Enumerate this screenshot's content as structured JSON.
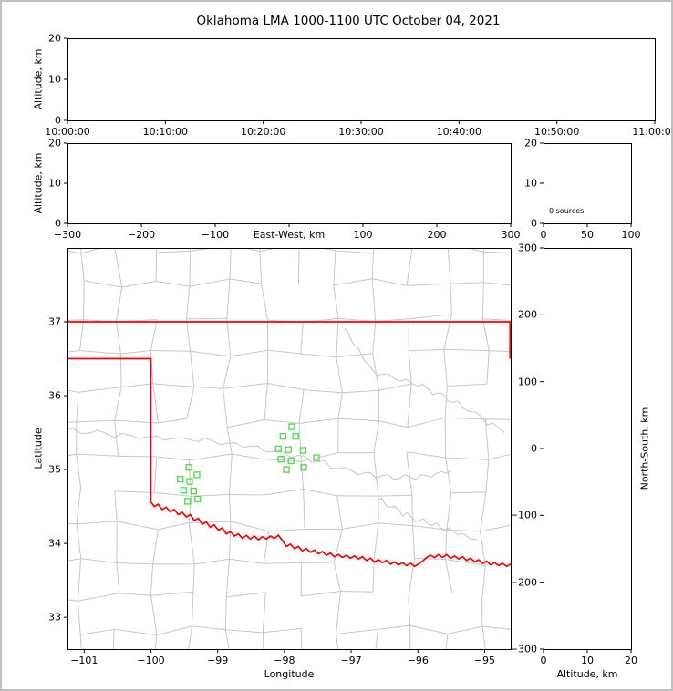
{
  "title": "Oklahoma LMA 1000-1100 UTC October 04, 2021",
  "colors": {
    "background": "#ffffff",
    "figure_border": "#c0c0c0",
    "axis": "#000000",
    "state_border": "#ff0000",
    "county_line": "#c6c6c6",
    "station_edge": "#55dd55"
  },
  "chart_data": {
    "type": "scatter",
    "title": "Oklahoma LMA 1000-1100 UTC October 04, 2021",
    "total_sources": 0,
    "panels": {
      "alt_vs_time": {
        "ylabel": "Altitude, km",
        "ylim": [
          0,
          20
        ],
        "yticks": [
          0,
          10,
          20
        ],
        "xticks": [
          "10:00:00",
          "10:10:00",
          "10:20:00",
          "10:30:00",
          "10:40:00",
          "10:50:00",
          "11:00:00"
        ],
        "points": []
      },
      "alt_vs_ew": {
        "ylabel": "Altitude, km",
        "xlabel": "East-West, km",
        "ylim": [
          0,
          20
        ],
        "yticks": [
          0,
          10,
          20
        ],
        "xlim": [
          -300,
          300
        ],
        "xticks": [
          -300,
          -200,
          -100,
          0,
          100,
          200,
          300
        ],
        "xlabel_replaces_zero_tick": true,
        "points": []
      },
      "alt_histogram": {
        "annotation": "0 sources",
        "ylim": [
          0,
          20
        ],
        "yticks": [
          0,
          10,
          20
        ],
        "xlim": [
          0,
          100
        ],
        "xticks": [
          0,
          50,
          100
        ],
        "bars": []
      },
      "plan_map": {
        "xlabel": "Longitude",
        "ylabel": "Latitude",
        "xlim": [
          -101.25,
          -94.61
        ],
        "ylim": [
          32.57,
          38.0
        ],
        "xticks": [
          -101,
          -100,
          -99,
          -98,
          -97,
          -96,
          -95
        ],
        "yticks": [
          33,
          34,
          35,
          36,
          37
        ],
        "points": [],
        "stations_lon_lat": [
          [
            -98.02,
            35.45
          ],
          [
            -97.83,
            35.45
          ],
          [
            -98.09,
            35.28
          ],
          [
            -97.94,
            35.27
          ],
          [
            -97.72,
            35.26
          ],
          [
            -98.05,
            35.14
          ],
          [
            -97.9,
            35.12
          ],
          [
            -97.97,
            35.0
          ],
          [
            -97.71,
            35.03
          ],
          [
            -97.52,
            35.16
          ],
          [
            -97.89,
            35.58
          ],
          [
            -99.43,
            35.03
          ],
          [
            -99.31,
            34.93
          ],
          [
            -99.56,
            34.87
          ],
          [
            -99.42,
            34.84
          ],
          [
            -99.51,
            34.72
          ],
          [
            -99.36,
            34.71
          ],
          [
            -99.45,
            34.57
          ],
          [
            -99.3,
            34.6
          ]
        ]
      },
      "ns_vs_alt": {
        "ylabel": "North-South, km",
        "xlabel": "Altitude, km",
        "ylim": [
          -300,
          300
        ],
        "yticks": [
          300,
          200,
          100,
          0,
          -100,
          -200,
          -300
        ],
        "xlim": [
          0,
          20
        ],
        "xticks": [
          0,
          10,
          20
        ],
        "points": []
      }
    },
    "map_overlay": {
      "oklahoma_north_border": [
        [
          -101.25,
          37.0
        ],
        [
          -94.61,
          37.0
        ]
      ],
      "oklahoma_east_border": [
        [
          -94.62,
          37.0
        ],
        [
          -94.62,
          36.5
        ]
      ],
      "oklahoma_west_border": [
        [
          -101.25,
          36.5
        ],
        [
          -100.0,
          36.5
        ],
        [
          -100.0,
          34.56
        ]
      ],
      "red_river_border": [
        [
          -100.0,
          34.56
        ],
        [
          -99.95,
          34.5
        ],
        [
          -99.89,
          34.53
        ],
        [
          -99.83,
          34.46
        ],
        [
          -99.77,
          34.49
        ],
        [
          -99.71,
          34.43
        ],
        [
          -99.65,
          34.46
        ],
        [
          -99.59,
          34.39
        ],
        [
          -99.53,
          34.42
        ],
        [
          -99.47,
          34.36
        ],
        [
          -99.41,
          34.39
        ],
        [
          -99.35,
          34.31
        ],
        [
          -99.29,
          34.34
        ],
        [
          -99.23,
          34.26
        ],
        [
          -99.17,
          34.29
        ],
        [
          -99.11,
          34.22
        ],
        [
          -99.05,
          34.25
        ],
        [
          -98.99,
          34.18
        ],
        [
          -98.93,
          34.21
        ],
        [
          -98.87,
          34.13
        ],
        [
          -98.81,
          34.16
        ],
        [
          -98.75,
          34.1
        ],
        [
          -98.69,
          34.13
        ],
        [
          -98.63,
          34.07
        ],
        [
          -98.57,
          34.11
        ],
        [
          -98.51,
          34.06
        ],
        [
          -98.45,
          34.1
        ],
        [
          -98.39,
          34.05
        ],
        [
          -98.33,
          34.09
        ],
        [
          -98.27,
          34.06
        ],
        [
          -98.21,
          34.1
        ],
        [
          -98.15,
          34.07
        ],
        [
          -98.09,
          34.11
        ],
        [
          -98.03,
          34.04
        ],
        [
          -97.97,
          33.96
        ],
        [
          -97.91,
          33.99
        ],
        [
          -97.85,
          33.93
        ],
        [
          -97.79,
          33.96
        ],
        [
          -97.73,
          33.9
        ],
        [
          -97.67,
          33.93
        ],
        [
          -97.61,
          33.88
        ],
        [
          -97.55,
          33.91
        ],
        [
          -97.49,
          33.86
        ],
        [
          -97.43,
          33.89
        ],
        [
          -97.37,
          33.84
        ],
        [
          -97.31,
          33.87
        ],
        [
          -97.25,
          33.82
        ],
        [
          -97.19,
          33.85
        ],
        [
          -97.13,
          33.81
        ],
        [
          -97.07,
          33.84
        ],
        [
          -97.01,
          33.8
        ],
        [
          -96.95,
          33.83
        ],
        [
          -96.89,
          33.79
        ],
        [
          -96.83,
          33.82
        ],
        [
          -96.77,
          33.77
        ],
        [
          -96.71,
          33.8
        ],
        [
          -96.65,
          33.75
        ],
        [
          -96.59,
          33.78
        ],
        [
          -96.53,
          33.74
        ],
        [
          -96.47,
          33.77
        ],
        [
          -96.41,
          33.72
        ],
        [
          -96.35,
          33.75
        ],
        [
          -96.29,
          33.71
        ],
        [
          -96.23,
          33.74
        ],
        [
          -96.17,
          33.7
        ],
        [
          -96.11,
          33.73
        ],
        [
          -96.05,
          33.69
        ],
        [
          -95.99,
          33.72
        ],
        [
          -95.93,
          33.76
        ],
        [
          -95.87,
          33.81
        ],
        [
          -95.81,
          33.84
        ],
        [
          -95.75,
          33.81
        ],
        [
          -95.69,
          33.85
        ],
        [
          -95.63,
          33.81
        ],
        [
          -95.57,
          33.85
        ],
        [
          -95.51,
          33.8
        ],
        [
          -95.45,
          33.83
        ],
        [
          -95.39,
          33.79
        ],
        [
          -95.33,
          33.82
        ],
        [
          -95.27,
          33.77
        ],
        [
          -95.21,
          33.8
        ],
        [
          -95.15,
          33.75
        ],
        [
          -95.09,
          33.78
        ],
        [
          -95.03,
          33.73
        ],
        [
          -94.97,
          33.76
        ],
        [
          -94.91,
          33.71
        ],
        [
          -94.85,
          33.74
        ],
        [
          -94.79,
          33.7
        ],
        [
          -94.73,
          33.73
        ],
        [
          -94.67,
          33.69
        ],
        [
          -94.61,
          33.72
        ]
      ],
      "county_grid": {
        "seed": 7,
        "lon_start": -101.6,
        "lon_step": 0.55,
        "cols": 13,
        "lat_start": 32.35,
        "lat_step": 0.47,
        "rows": 13,
        "jitter": 0.07,
        "skip_fraction": 0.13
      },
      "gray_rivers": [
        [
          [
            -101.3,
            35.55
          ],
          [
            -100.3,
            35.45
          ],
          [
            -99.3,
            35.4
          ],
          [
            -98.4,
            35.3
          ],
          [
            -97.6,
            35.12
          ],
          [
            -96.8,
            34.93
          ],
          [
            -96.1,
            34.88
          ],
          [
            -95.5,
            34.98
          ]
        ],
        [
          [
            -97.1,
            36.9
          ],
          [
            -96.7,
            36.35
          ],
          [
            -96.0,
            36.15
          ],
          [
            -95.4,
            35.9
          ],
          [
            -94.7,
            35.5
          ]
        ],
        [
          [
            -96.6,
            34.6
          ],
          [
            -96.1,
            34.35
          ],
          [
            -95.6,
            34.2
          ],
          [
            -95.1,
            34.05
          ]
        ]
      ]
    }
  }
}
